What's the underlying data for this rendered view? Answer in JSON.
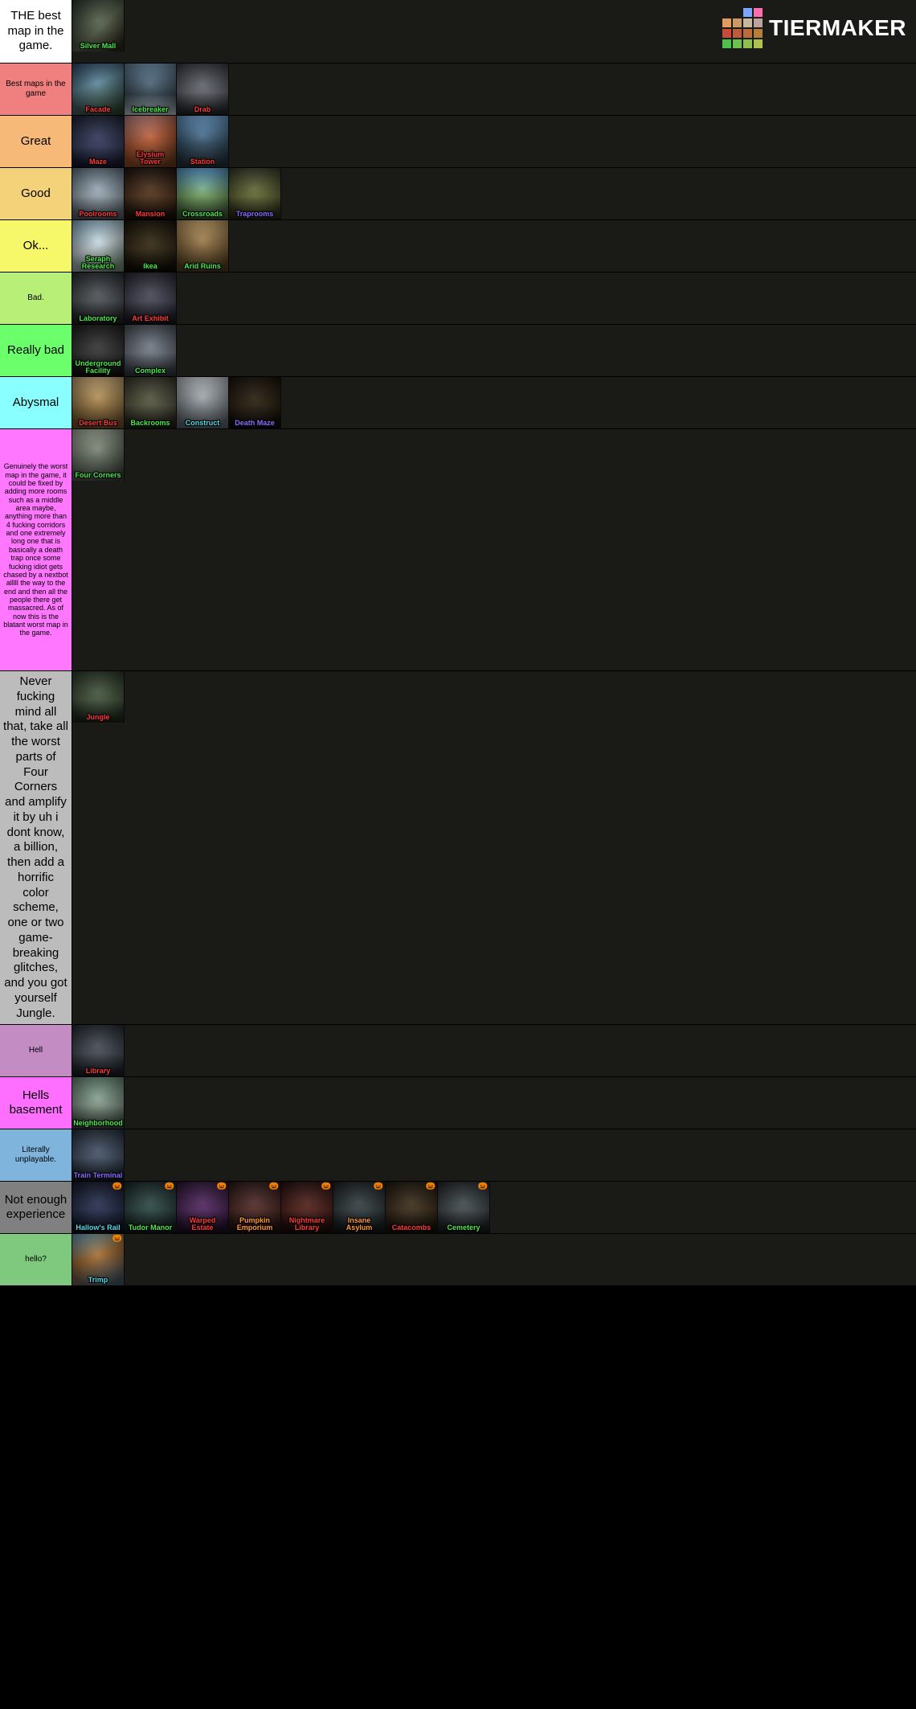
{
  "logo": {
    "text": "TIERMAKER",
    "grid_colors": [
      null,
      null,
      "#7aa6ff",
      "#ff6fb0",
      "#e29a5f",
      "#cc9866",
      "#c6b89b",
      "#bda1a1",
      "#c94a3b",
      "#c05a39",
      "#bb6c3a",
      "#b67e3a",
      "#4cc24c",
      "#6bc24c",
      "#8cc24c",
      "#aec24c"
    ]
  },
  "cap_colors": {
    "green": "#4de84d",
    "red": "#ff3a3a",
    "blue": "#5aa8ff",
    "purple": "#8a6cff",
    "cyan": "#58d9e8",
    "orange": "#ff9a3c"
  },
  "rows": [
    {
      "label": "THE best map in the game.",
      "label_bg": "#ffffff",
      "label_class": "big",
      "min_h": 78,
      "items": [
        {
          "name": "Silver Mall",
          "cap": "green",
          "bg": "linear-gradient(135deg,#2c3b2e,#5d6752 55%,#2b2014)"
        }
      ]
    },
    {
      "label": "Best maps in the game",
      "label_bg": "#f08080",
      "label_class": "small",
      "min_h": 64,
      "items": [
        {
          "name": "Facade",
          "cap": "red",
          "bg": "linear-gradient(160deg,#2e4f6e,#5f8a9c 40%,#2b3b1f)"
        },
        {
          "name": "Icebreaker",
          "cap": "green",
          "bg": "linear-gradient(180deg,#6b8ca8,#3b4d5a 60%,#c8d4da)"
        },
        {
          "name": "Drab",
          "cap": "red",
          "bg": "linear-gradient(180deg,#3b3f46,#6c7078 55%,#1e2024)"
        }
      ]
    },
    {
      "label": "Great",
      "label_bg": "#f7b977",
      "label_class": "big",
      "min_h": 64,
      "items": [
        {
          "name": "Maze",
          "cap": "red",
          "bg": "linear-gradient(180deg,#202639,#3a4268 60%,#12152a)"
        },
        {
          "name": "Elysium Tower",
          "cap": "red",
          "bg": "linear-gradient(160deg,#c98b8b,#b85a31 50%,#6b3a1e)"
        },
        {
          "name": "Station",
          "cap": "red",
          "bg": "linear-gradient(180deg,#6fa6d6,#35536b 55%,#233138)"
        }
      ]
    },
    {
      "label": "Good",
      "label_bg": "#f3d27a",
      "label_class": "big",
      "min_h": 64,
      "items": [
        {
          "name": "Poolrooms",
          "cap": "red",
          "bg": "linear-gradient(180deg,#6a7c8c,#a7b6c0 55%,#4e5a63)"
        },
        {
          "name": "Mansion",
          "cap": "red",
          "bg": "linear-gradient(180deg,#21150e,#5c3a1f 55%,#120b06)"
        },
        {
          "name": "Crossroads",
          "cap": "green",
          "bg": "linear-gradient(180deg,#5a9fd4,#7fae69 55%,#2f4a2a)"
        },
        {
          "name": "Traprooms",
          "cap": "purple",
          "bg": "linear-gradient(180deg,#3a3e2a,#6d7338 55%,#1d2013)"
        }
      ]
    },
    {
      "label": "Ok...",
      "label_bg": "#f7f76a",
      "label_class": "big",
      "min_h": 64,
      "items": [
        {
          "name": "Seraph Research",
          "cap": "green",
          "bg": "linear-gradient(160deg,#8fb9d0,#cedbe0 50%,#6a8a6d)"
        },
        {
          "name": "Ikea",
          "cap": "green",
          "bg": "linear-gradient(180deg,#1a1308,#3b2e16 55%,#0c0905)"
        },
        {
          "name": "Arid Ruins",
          "cap": "green",
          "bg": "linear-gradient(180deg,#c8a46a,#8b6b3e 55%,#4e3c1f)"
        }
      ]
    },
    {
      "label": "Bad.",
      "label_bg": "#b7ef77",
      "label_class": "small",
      "min_h": 64,
      "items": [
        {
          "name": "Laboratory",
          "cap": "green",
          "bg": "linear-gradient(180deg,#2e3236,#575c62 55%,#1a1c1f)"
        },
        {
          "name": "Art Exhibit",
          "cap": "red",
          "bg": "linear-gradient(180deg,#2a2b34,#4e5061 55%,#15161d)"
        }
      ]
    },
    {
      "label": "Really bad",
      "label_bg": "#6cff6c",
      "label_class": "big",
      "min_h": 64,
      "items": [
        {
          "name": "Underground Facility",
          "cap": "green",
          "bg": "linear-gradient(180deg,#1f1f1f,#3c3c3c 55%,#0e0e0e)"
        },
        {
          "name": "Complex",
          "cap": "green",
          "bg": "linear-gradient(180deg,#505762,#7d8590 55%,#2e333a)"
        }
      ]
    },
    {
      "label": "Abysmal",
      "label_bg": "#89ffff",
      "label_class": "big",
      "min_h": 64,
      "items": [
        {
          "name": "Desert Bus",
          "cap": "red",
          "bg": "linear-gradient(180deg,#d1b07a,#a7824a 55%,#6b5028)"
        },
        {
          "name": "Backrooms",
          "cap": "green",
          "bg": "linear-gradient(180deg,#3b3b2c,#5c5c46 55%,#1c1c14)"
        },
        {
          "name": "Construct",
          "cap": "cyan",
          "bg": "linear-gradient(180deg,#c9cfd4,#8e969c 55%,#5c636a)"
        },
        {
          "name": "Death Maze",
          "cap": "purple",
          "bg": "linear-gradient(180deg,#1a130a,#2e2211 55%,#0a0704)"
        }
      ]
    },
    {
      "label": "Genuinely the worst map in the game, it could be fixed by adding more rooms such as a middle area maybe, anything more than 4 fucking corridors and one extremely long one that is basically a death trap once some fucking idiot gets chased by a nextbot alllll the way to the end and then all the people there get massacred. As of now this is the blatant worst map in the game.",
      "label_bg": "#ff77ff",
      "label_class": "tiny",
      "min_h": 300,
      "items": [
        {
          "name": "Four Corners",
          "cap": "green",
          "bg": "linear-gradient(160deg,#aeb9a6,#6a7465 55%,#3b4239)"
        }
      ]
    },
    {
      "label": "Never fucking mind all that, take all the worst parts of Four Corners and amplify it by uh i dont know, a billion, then add a horrific color scheme, one or two game-breaking glitches, and you got yourself Jungle.",
      "label_bg": "#bcbcbc",
      "label_class": "big",
      "min_h": 416,
      "items": [
        {
          "name": "Jungle",
          "cap": "red",
          "bg": "linear-gradient(180deg,#2e3b2a,#4a5d44 55%,#1a2317)"
        }
      ]
    },
    {
      "label": "Hell",
      "label_bg": "#c38dc3",
      "label_class": "small",
      "min_h": 64,
      "items": [
        {
          "name": "Library",
          "cap": "red",
          "bg": "linear-gradient(180deg,#2a2f36,#4c535d 55%,#141820)"
        }
      ]
    },
    {
      "label": "Hells basement",
      "label_bg": "#ff6fff",
      "label_class": "big",
      "min_h": 64,
      "items": [
        {
          "name": "Neighborhood",
          "cap": "green",
          "bg": "linear-gradient(180deg,#6e8f7d,#8fa695 55%,#3a4a3f)"
        }
      ]
    },
    {
      "label": "Literally unplayable.",
      "label_bg": "#7fb4dd",
      "label_class": "small",
      "min_h": 64,
      "items": [
        {
          "name": "Train Terminal",
          "cap": "purple",
          "bg": "linear-gradient(180deg,#2a3442,#4c5c72 55%,#141a24)"
        }
      ]
    },
    {
      "label": "Not enough experience",
      "label_bg": "#808080",
      "label_class": "big",
      "min_h": 64,
      "items": [
        {
          "name": "Hallow's Rail",
          "cap": "cyan",
          "bg": "linear-gradient(180deg,#151a2c,#2c365a 55%,#0a0d18)",
          "pumpkin": true
        },
        {
          "name": "Tudor Manor",
          "cap": "green",
          "bg": "linear-gradient(180deg,#1b2a2a,#32504d 55%,#0d1414)",
          "pumpkin": true
        },
        {
          "name": "Warped Estate",
          "cap": "red",
          "bg": "linear-gradient(180deg,#301838,#5a2c6a 55%,#180c1c)",
          "pumpkin": true
        },
        {
          "name": "Pumpkin Emporium",
          "cap": "orange",
          "bg": "linear-gradient(180deg,#2e1a1a,#5a2f2a 55%,#170d0d)",
          "pumpkin": true
        },
        {
          "name": "Nightmare Library",
          "cap": "red",
          "bg": "linear-gradient(180deg,#2a1210,#5c261f 55%,#140807)",
          "pumpkin": true
        },
        {
          "name": "Insane Asylum",
          "cap": "orange",
          "bg": "linear-gradient(180deg,#1e2426,#3a464a 55%,#0f1213)",
          "pumpkin": true
        },
        {
          "name": "Catacombs",
          "cap": "red",
          "bg": "linear-gradient(180deg,#221a10,#44341f 55%,#110d08)",
          "pumpkin": true
        },
        {
          "name": "Cemetery",
          "cap": "green",
          "bg": "linear-gradient(180deg,#262b2e,#4a5358 55%,#131618)",
          "pumpkin": true
        }
      ]
    },
    {
      "label": "hello?",
      "label_bg": "#7fc97f",
      "label_class": "small",
      "min_h": 64,
      "items": [
        {
          "name": "Trimp",
          "cap": "cyan",
          "bg": "linear-gradient(160deg,#6aa9c2,#a86c2e 45%,#3a5c78)",
          "pumpkin": true
        }
      ]
    }
  ]
}
